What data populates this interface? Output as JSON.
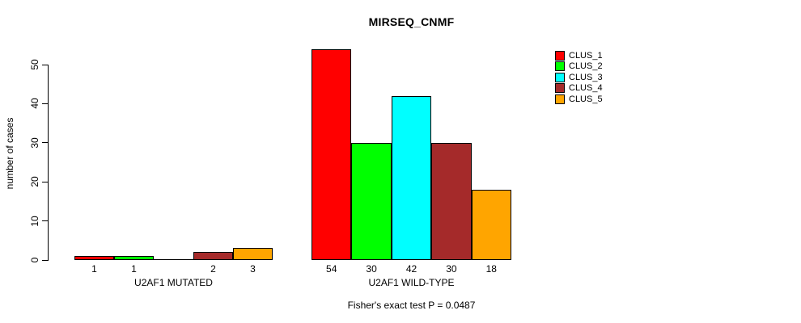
{
  "chart_data": {
    "type": "bar",
    "title": "MIRSEQ_CNMF",
    "subtitle": "Fisher's exact test P = 0.0487",
    "ylabel": "number of cases",
    "xlabel": "",
    "ylim": [
      0,
      50
    ],
    "yticks": [
      0,
      10,
      20,
      30,
      40,
      50
    ],
    "grid": false,
    "background": "#ffffff",
    "axis_color": "#000000",
    "clusters": [
      "CLUS_1",
      "CLUS_2",
      "CLUS_3",
      "CLUS_4",
      "CLUS_5"
    ],
    "series_colors": [
      "#FF0000",
      "#00FF00",
      "#00FFFF",
      "#A52A2A",
      "#FFA500"
    ],
    "groups": [
      {
        "label": "U2AF1 MUTATED",
        "values": [
          1,
          1,
          0,
          2,
          3
        ],
        "bar_labels": [
          "1",
          "1",
          "",
          "2",
          "3"
        ]
      },
      {
        "label": "U2AF1 WILD-TYPE",
        "values": [
          54,
          30,
          42,
          30,
          18
        ],
        "bar_labels": [
          "54",
          "30",
          "42",
          "30",
          "18"
        ]
      }
    ],
    "legend": {
      "position": "right-top",
      "entries": [
        {
          "label": "CLUS_1",
          "color": "#FF0000"
        },
        {
          "label": "CLUS_2",
          "color": "#00FF00"
        },
        {
          "label": "CLUS_3",
          "color": "#00FFFF"
        },
        {
          "label": "CLUS_4",
          "color": "#A52A2A"
        },
        {
          "label": "CLUS_5",
          "color": "#FFA500"
        }
      ]
    }
  }
}
